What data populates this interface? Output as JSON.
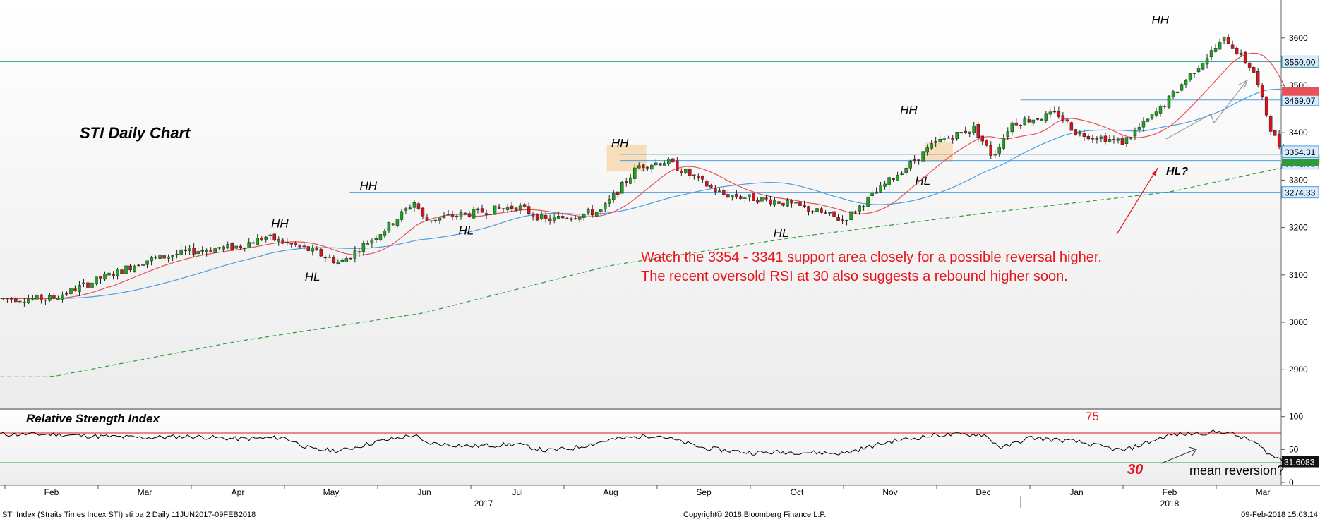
{
  "chart_data": [
    {
      "type": "candlestick",
      "title": "STI Daily Chart",
      "y_ticks": [
        2900,
        3000,
        3100,
        3200,
        3300,
        3400,
        3500,
        3600
      ],
      "ylim": [
        2820,
        3680
      ],
      "x_months": [
        "Feb",
        "Mar",
        "Apr",
        "May",
        "Jun",
        "Jul",
        "Aug",
        "Sep",
        "Oct",
        "Nov",
        "Dec",
        "Jan",
        "Feb",
        "Mar"
      ],
      "x_years": [
        {
          "label": "2017",
          "month_index": 5
        },
        {
          "label": "2018",
          "month_index": 12
        }
      ],
      "price_knots": [
        {
          "m": 0.0,
          "v": 3050
        },
        {
          "m": 0.5,
          "v": 3090
        },
        {
          "m": 1.0,
          "v": 3130
        },
        {
          "m": 1.5,
          "v": 3150
        },
        {
          "m": 2.0,
          "v": 3160
        },
        {
          "m": 2.3,
          "v": 3180
        },
        {
          "m": 2.8,
          "v": 3150
        },
        {
          "m": 3.1,
          "v": 3125
        },
        {
          "m": 3.6,
          "v": 3200
        },
        {
          "m": 3.9,
          "v": 3255
        },
        {
          "m": 4.0,
          "v": 3215
        },
        {
          "m": 4.5,
          "v": 3230
        },
        {
          "m": 5.0,
          "v": 3245
        },
        {
          "m": 5.3,
          "v": 3215
        },
        {
          "m": 5.9,
          "v": 3235
        },
        {
          "m": 6.3,
          "v": 3330
        },
        {
          "m": 6.6,
          "v": 3340
        },
        {
          "m": 7.2,
          "v": 3270
        },
        {
          "m": 7.8,
          "v": 3255
        },
        {
          "m": 8.2,
          "v": 3235
        },
        {
          "m": 8.5,
          "v": 3215
        },
        {
          "m": 9.0,
          "v": 3300
        },
        {
          "m": 9.5,
          "v": 3380
        },
        {
          "m": 9.9,
          "v": 3410
        },
        {
          "m": 10.1,
          "v": 3350
        },
        {
          "m": 10.3,
          "v": 3420
        },
        {
          "m": 10.8,
          "v": 3440
        },
        {
          "m": 11.0,
          "v": 3400
        },
        {
          "m": 11.5,
          "v": 3380
        },
        {
          "m": 11.9,
          "v": 3450
        },
        {
          "m": 12.3,
          "v": 3540
        },
        {
          "m": 12.6,
          "v": 3600
        },
        {
          "m": 12.9,
          "v": 3530
        },
        {
          "m": 13.1,
          "v": 3400
        },
        {
          "m": 13.25,
          "v": 3345
        }
      ],
      "moving_averages": [
        {
          "name": "",
          "color": "#e8505a",
          "lag": 0.6
        },
        {
          "name": "",
          "color": "#4d9de0",
          "lag": 1.7
        },
        {
          "name": "",
          "color": "#2e9b3a",
          "dashed": true,
          "knots": [
            {
              "m": 0.0,
              "v": 2885
            },
            {
              "m": 2.0,
              "v": 2960
            },
            {
              "m": 4.0,
              "v": 3020
            },
            {
              "m": 6.0,
              "v": 3120
            },
            {
              "m": 8.0,
              "v": 3180
            },
            {
              "m": 10.0,
              "v": 3230
            },
            {
              "m": 12.0,
              "v": 3275
            },
            {
              "m": 13.3,
              "v": 3330
            }
          ]
        }
      ],
      "horizontal_levels": [
        {
          "value": 3550,
          "label": "3550.00",
          "color": "#2a9d8f"
        },
        {
          "value": 3469.07,
          "label": "3469.07",
          "color": "#4d9de0"
        },
        {
          "value": 3354.31,
          "label": "3354.31",
          "color": "#4d9de0"
        },
        {
          "value": 3341.3,
          "label": "3341.30",
          "color": "#4d9de0"
        },
        {
          "value": 3274.33,
          "label": "3274.33",
          "color": "#4d9de0"
        }
      ],
      "pivot_labels": [
        {
          "text": "HH",
          "m": 2.45,
          "v": 3200
        },
        {
          "text": "HL",
          "m": 2.8,
          "v": 3088
        },
        {
          "text": "HH",
          "m": 3.4,
          "v": 3280
        },
        {
          "text": "HL",
          "m": 4.45,
          "v": 3185
        },
        {
          "text": "HH",
          "m": 6.1,
          "v": 3370
        },
        {
          "text": "HL",
          "m": 7.83,
          "v": 3180
        },
        {
          "text": "HH",
          "m": 9.2,
          "v": 3440
        },
        {
          "text": "HL",
          "m": 9.35,
          "v": 3290
        },
        {
          "text": "HH",
          "m": 11.9,
          "v": 3630
        }
      ],
      "support_zone": {
        "from": 3341.3,
        "to": 3354.31
      },
      "annotation": {
        "line1": "Watch the 3354 - 3341 support area closely for a possible reversal higher.",
        "line2": "The recent oversold RSI at 30 also suggests a rebound higher soon.",
        "hl_question": "HL?"
      }
    },
    {
      "type": "line",
      "title": "Relative Strength Index",
      "y_ticks": [
        0,
        50,
        100
      ],
      "ylim": [
        0,
        105
      ],
      "overbought": 75,
      "oversold": 30,
      "overbought_label": "75",
      "oversold_label": "30",
      "last_value": "31.6083",
      "rsi_knots": [
        {
          "m": 0.0,
          "v": 73
        },
        {
          "m": 0.5,
          "v": 70
        },
        {
          "m": 1.0,
          "v": 68
        },
        {
          "m": 1.5,
          "v": 70
        },
        {
          "m": 2.0,
          "v": 66
        },
        {
          "m": 2.5,
          "v": 68
        },
        {
          "m": 2.8,
          "v": 50
        },
        {
          "m": 3.1,
          "v": 48
        },
        {
          "m": 3.5,
          "v": 62
        },
        {
          "m": 3.9,
          "v": 72
        },
        {
          "m": 4.0,
          "v": 60
        },
        {
          "m": 4.5,
          "v": 55
        },
        {
          "m": 5.0,
          "v": 58
        },
        {
          "m": 5.3,
          "v": 48
        },
        {
          "m": 5.6,
          "v": 52
        },
        {
          "m": 6.0,
          "v": 65
        },
        {
          "m": 6.5,
          "v": 72
        },
        {
          "m": 7.0,
          "v": 52
        },
        {
          "m": 7.5,
          "v": 45
        },
        {
          "m": 8.0,
          "v": 46
        },
        {
          "m": 8.5,
          "v": 44
        },
        {
          "m": 9.0,
          "v": 62
        },
        {
          "m": 9.5,
          "v": 72
        },
        {
          "m": 10.0,
          "v": 73
        },
        {
          "m": 10.2,
          "v": 52
        },
        {
          "m": 10.5,
          "v": 68
        },
        {
          "m": 11.0,
          "v": 62
        },
        {
          "m": 11.5,
          "v": 48
        },
        {
          "m": 12.0,
          "v": 72
        },
        {
          "m": 12.6,
          "v": 77
        },
        {
          "m": 12.9,
          "v": 62
        },
        {
          "m": 13.1,
          "v": 40
        },
        {
          "m": 13.25,
          "v": 31.6
        }
      ],
      "annotation": "mean reversion?"
    }
  ],
  "footer": {
    "left": "STI Index (Straits Times Index STI) sti pa 2  Daily 11JUN2017-09FEB2018",
    "center": "Copyright© 2018 Bloomberg Finance L.P.",
    "right": "09-Feb-2018 15:03:14"
  }
}
